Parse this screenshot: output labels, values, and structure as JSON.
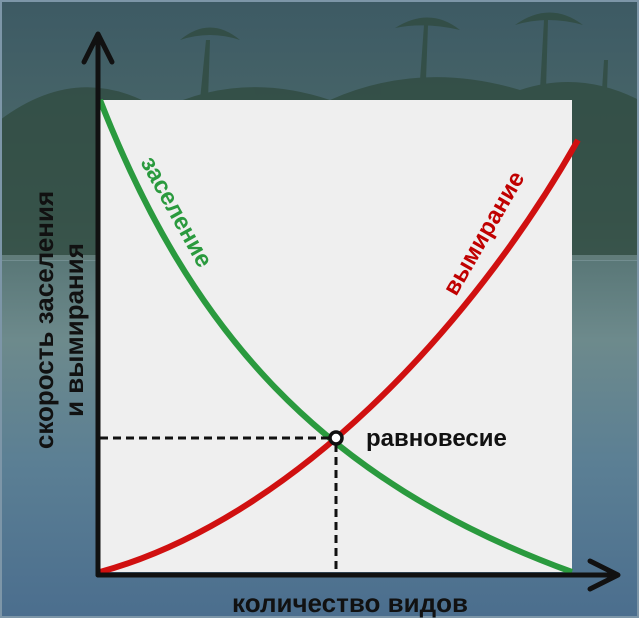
{
  "y_axis_label": [
    "скорость заселения",
    "и вымирания"
  ],
  "x_axis_label": "количество видов",
  "curves": [
    {
      "label": "заселение"
    },
    {
      "label": "вымирание"
    }
  ],
  "equilibrium_label": "равновесие"
}
